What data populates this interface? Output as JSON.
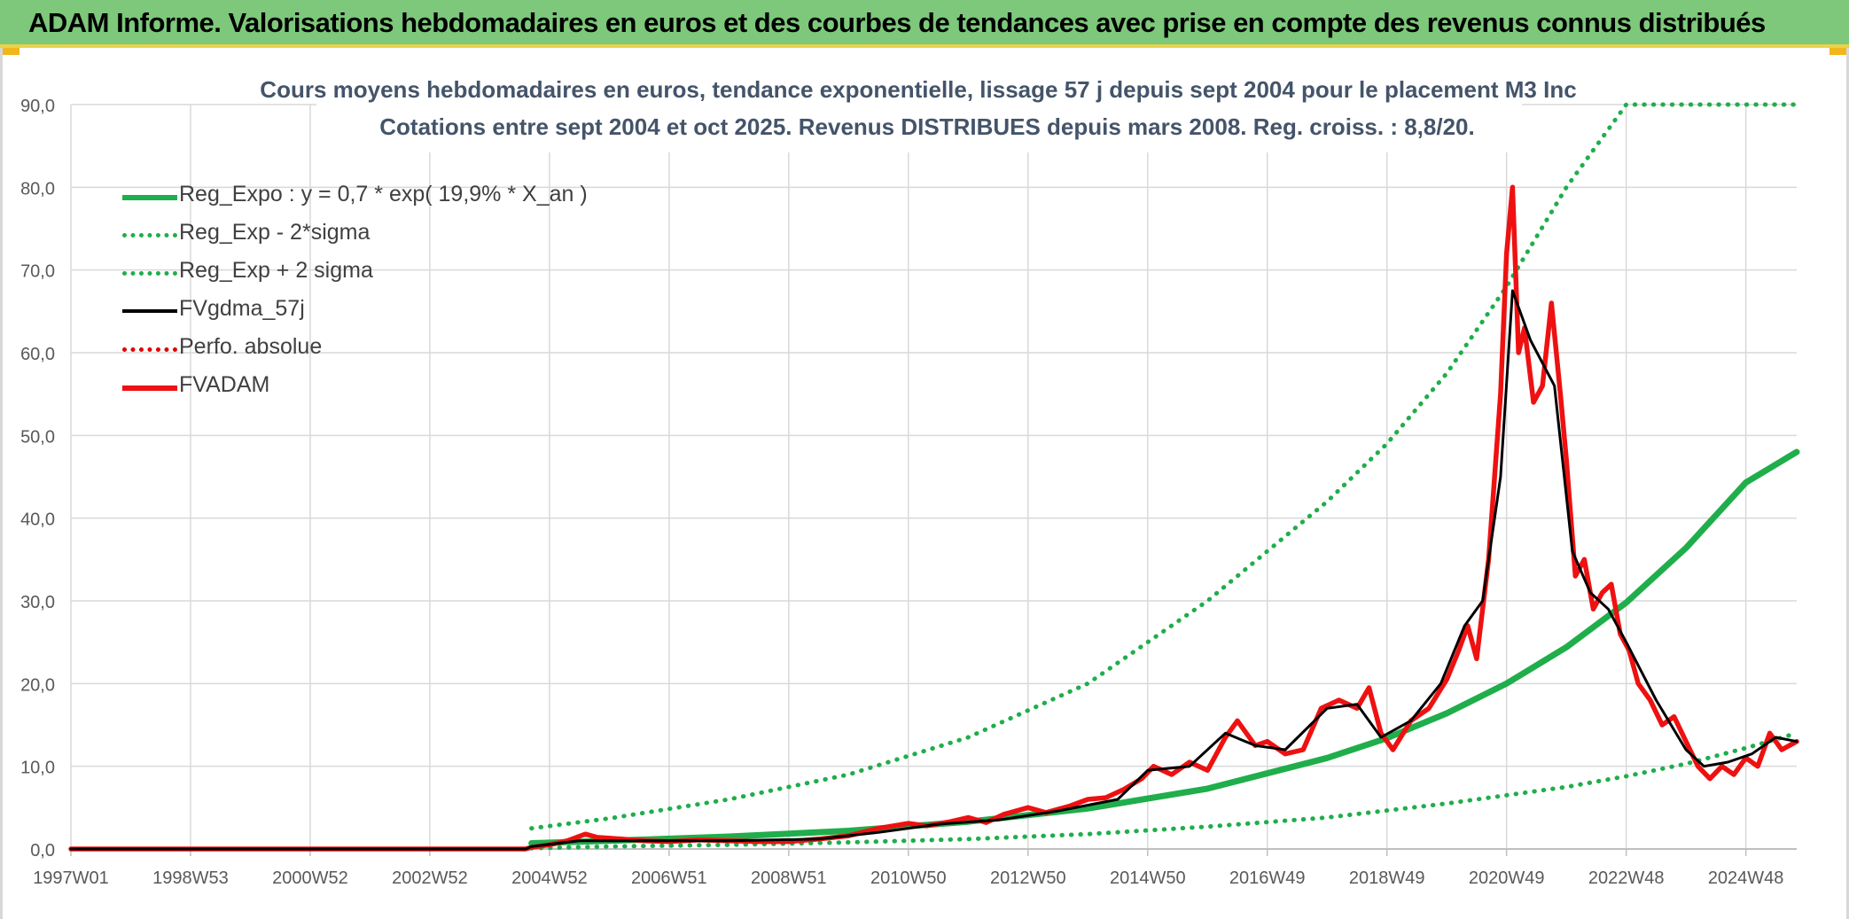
{
  "header": {
    "title": "ADAM Informe. Valorisations hebdomadaires en euros et des courbes de tendances avec prise en compte des revenus connus distribués"
  },
  "colors": {
    "header_bg": "#7dc87a",
    "regression": "#1fae4b",
    "sigma_bands": "#1fae4b",
    "smoothed": "#000000",
    "perf_absolute": "#e00000",
    "fvadam": "#ee1111",
    "grid": "#d9d9d9"
  },
  "chart_data": {
    "type": "line",
    "title": "Cours moyens hebdomadaires en euros, tendance exponentielle, lissage 57 j depuis sept 2004 pour le placement M3 Inc",
    "subtitle": "Cotations entre sept 2004 et oct 2025. Revenus DISTRIBUES depuis mars 2008. Reg. croiss. : 8,8/20.",
    "xlabel": "",
    "ylabel": "",
    "ylim": [
      0,
      90
    ],
    "yticks": [
      "0,0",
      "10,0",
      "20,0",
      "30,0",
      "40,0",
      "50,0",
      "60,0",
      "70,0",
      "80,0",
      "90,0"
    ],
    "xlim": [
      1997.0,
      2025.85
    ],
    "xtick_labels": [
      "1997W01",
      "1998W53",
      "2000W52",
      "2002W52",
      "2004W52",
      "2006W51",
      "2008W51",
      "2010W50",
      "2012W50",
      "2014W50",
      "2016W49",
      "2018W49",
      "2020W49",
      "2022W48",
      "2024W48"
    ],
    "xtick_years": [
      1997.0,
      1999.0,
      2001.0,
      2003.0,
      2005.0,
      2007.0,
      2009.0,
      2011.0,
      2013.0,
      2015.0,
      2017.0,
      2019.0,
      2021.0,
      2023.0,
      2025.0
    ],
    "legend_position": "top-left",
    "legend": [
      {
        "label": "Reg_Expo : y = 0,7 * exp( 19,9% *  X_an )",
        "style": "solid",
        "color": "#1fae4b"
      },
      {
        "label": "Reg_Exp - 2*sigma",
        "style": "dotted",
        "color": "#1fae4b"
      },
      {
        "label": "Reg_Exp + 2 sigma",
        "style": "dotted",
        "color": "#1fae4b"
      },
      {
        "label": "FVgdma_57j",
        "style": "solid-thin",
        "color": "#000000"
      },
      {
        "label": "Perfo. absolue",
        "style": "dotted",
        "color": "#e00000"
      },
      {
        "label": "FVADAM",
        "style": "solid",
        "color": "#ee1111"
      }
    ],
    "series": [
      {
        "name": "Reg_Expo : y = 0,7 * exp( 19,9% *  X_an )",
        "x": [
          2004.7,
          2006.0,
          2008.0,
          2010.0,
          2012.0,
          2014.0,
          2016.0,
          2018.0,
          2019.0,
          2020.0,
          2021.0,
          2022.0,
          2023.0,
          2024.0,
          2025.0,
          2025.85
        ],
        "values": [
          0.7,
          1.0,
          1.5,
          2.2,
          3.3,
          4.9,
          7.3,
          11.0,
          13.4,
          16.4,
          20.0,
          24.4,
          29.8,
          36.4,
          44.3,
          48.0
        ]
      },
      {
        "name": "Reg_Exp - 2*sigma",
        "x": [
          2004.7,
          2006.0,
          2008.0,
          2010.0,
          2012.0,
          2014.0,
          2016.0,
          2018.0,
          2020.0,
          2022.0,
          2023.0,
          2024.0,
          2025.0,
          2025.85
        ],
        "values": [
          0.1,
          0.3,
          0.5,
          0.8,
          1.2,
          1.8,
          2.7,
          3.8,
          5.5,
          7.5,
          8.8,
          10.3,
          12.2,
          14.0
        ]
      },
      {
        "name": "Reg_Exp + 2 sigma",
        "x": [
          2004.7,
          2006.0,
          2008.0,
          2010.0,
          2012.0,
          2014.0,
          2016.0,
          2018.0,
          2019.0,
          2020.0,
          2021.0,
          2022.0,
          2023.0,
          2025.85
        ],
        "values": [
          2.5,
          3.7,
          6.0,
          9.0,
          13.5,
          20.0,
          30.0,
          42.0,
          49.0,
          57.5,
          68.0,
          80.0,
          90.0,
          90.0
        ]
      },
      {
        "name": "FVgdma_57j",
        "x": [
          1997.0,
          2004.6,
          2004.7,
          2005.5,
          2006.5,
          2008.0,
          2009.5,
          2010.5,
          2011.5,
          2012.5,
          2013.5,
          2014.5,
          2015.0,
          2015.7,
          2016.3,
          2016.8,
          2017.3,
          2018.0,
          2018.5,
          2018.9,
          2019.4,
          2019.9,
          2020.3,
          2020.6,
          2020.9,
          2021.1,
          2021.4,
          2021.8,
          2022.1,
          2022.4,
          2022.7,
          2023.0,
          2023.5,
          2024.0,
          2024.3,
          2024.7,
          2025.1,
          2025.5,
          2025.85
        ],
        "values": [
          0,
          0,
          0.3,
          1.0,
          1.0,
          1.0,
          1.2,
          2.0,
          3.0,
          3.5,
          4.6,
          6.0,
          9.5,
          10.0,
          14.0,
          12.5,
          12.0,
          17.0,
          17.5,
          13.5,
          15.5,
          20.0,
          27.0,
          30.0,
          45.0,
          67.5,
          61.5,
          56.0,
          36.0,
          31.0,
          29.0,
          25.0,
          18.0,
          12.0,
          10.0,
          10.5,
          11.5,
          13.5,
          13.0
        ]
      },
      {
        "name": "Perfo. absolue",
        "x": [],
        "values": []
      },
      {
        "name": "FVADAM",
        "x": [
          1997.0,
          2004.6,
          2004.7,
          2005.0,
          2005.3,
          2005.6,
          2005.8,
          2006.2,
          2006.6,
          2007.0,
          2007.5,
          2008.0,
          2008.5,
          2009.0,
          2009.5,
          2010.0,
          2010.5,
          2011.0,
          2011.3,
          2011.7,
          2012.0,
          2012.3,
          2012.6,
          2013.0,
          2013.3,
          2013.7,
          2014.0,
          2014.3,
          2014.6,
          2014.9,
          2015.1,
          2015.4,
          2015.7,
          2016.0,
          2016.3,
          2016.5,
          2016.8,
          2017.0,
          2017.3,
          2017.6,
          2017.9,
          2018.2,
          2018.5,
          2018.7,
          2018.9,
          2019.1,
          2019.4,
          2019.7,
          2020.0,
          2020.2,
          2020.35,
          2020.5,
          2020.7,
          2020.9,
          2021.0,
          2021.1,
          2021.2,
          2021.3,
          2021.45,
          2021.6,
          2021.75,
          2021.9,
          2022.0,
          2022.15,
          2022.3,
          2022.45,
          2022.6,
          2022.75,
          2022.9,
          2023.05,
          2023.2,
          2023.4,
          2023.6,
          2023.8,
          2024.0,
          2024.2,
          2024.4,
          2024.6,
          2024.8,
          2025.0,
          2025.2,
          2025.4,
          2025.6,
          2025.85
        ],
        "values": [
          0,
          0,
          0.2,
          0.5,
          1.0,
          1.8,
          1.4,
          1.2,
          1.0,
          0.9,
          1.1,
          1.0,
          0.9,
          0.9,
          1.2,
          1.6,
          2.5,
          3.1,
          2.8,
          3.3,
          3.8,
          3.2,
          4.2,
          5.0,
          4.4,
          5.2,
          6.0,
          6.2,
          7.2,
          8.5,
          10.0,
          9.0,
          10.5,
          9.5,
          13.5,
          15.5,
          12.5,
          13.0,
          11.5,
          12.0,
          17.0,
          18.0,
          17.0,
          19.5,
          14.0,
          12.0,
          15.5,
          17.0,
          20.5,
          24.0,
          27.0,
          23.0,
          35.0,
          55.0,
          72.0,
          80.0,
          60.0,
          63.0,
          54.0,
          56.0,
          66.0,
          55.0,
          47.0,
          33.0,
          35.0,
          29.0,
          31.0,
          32.0,
          26.0,
          24.0,
          20.0,
          18.0,
          15.0,
          16.0,
          13.0,
          10.0,
          8.5,
          10.0,
          9.0,
          11.0,
          10.0,
          14.0,
          12.0,
          13.0
        ]
      }
    ]
  }
}
